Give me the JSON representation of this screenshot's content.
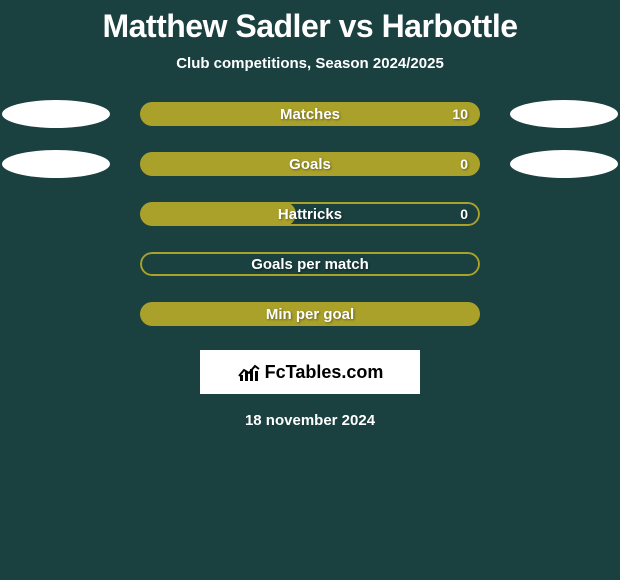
{
  "title": "Matthew Sadler vs Harbottle",
  "subtitle": "Club competitions, Season 2024/2025",
  "colors": {
    "background": "#1a4040",
    "bar_fill": "#a9a12a",
    "bar_border": "#a9a12a",
    "ellipse": "#ffffff",
    "text": "#ffffff"
  },
  "stats": [
    {
      "label": "Matches",
      "value": "10",
      "fill_pct": 100,
      "show_value": true,
      "left_ellipse": true,
      "right_ellipse": true
    },
    {
      "label": "Goals",
      "value": "0",
      "fill_pct": 100,
      "show_value": true,
      "left_ellipse": true,
      "right_ellipse": true
    },
    {
      "label": "Hattricks",
      "value": "0",
      "fill_pct": 46,
      "show_value": true,
      "left_ellipse": false,
      "right_ellipse": false
    },
    {
      "label": "Goals per match",
      "value": "",
      "fill_pct": 0,
      "show_value": false,
      "left_ellipse": false,
      "right_ellipse": false
    },
    {
      "label": "Min per goal",
      "value": "",
      "fill_pct": 100,
      "show_value": false,
      "left_ellipse": false,
      "right_ellipse": false
    }
  ],
  "footer": {
    "logo_text_prefix": "Fc",
    "logo_text_suffix": "Tables.com",
    "date": "18 november 2024"
  }
}
